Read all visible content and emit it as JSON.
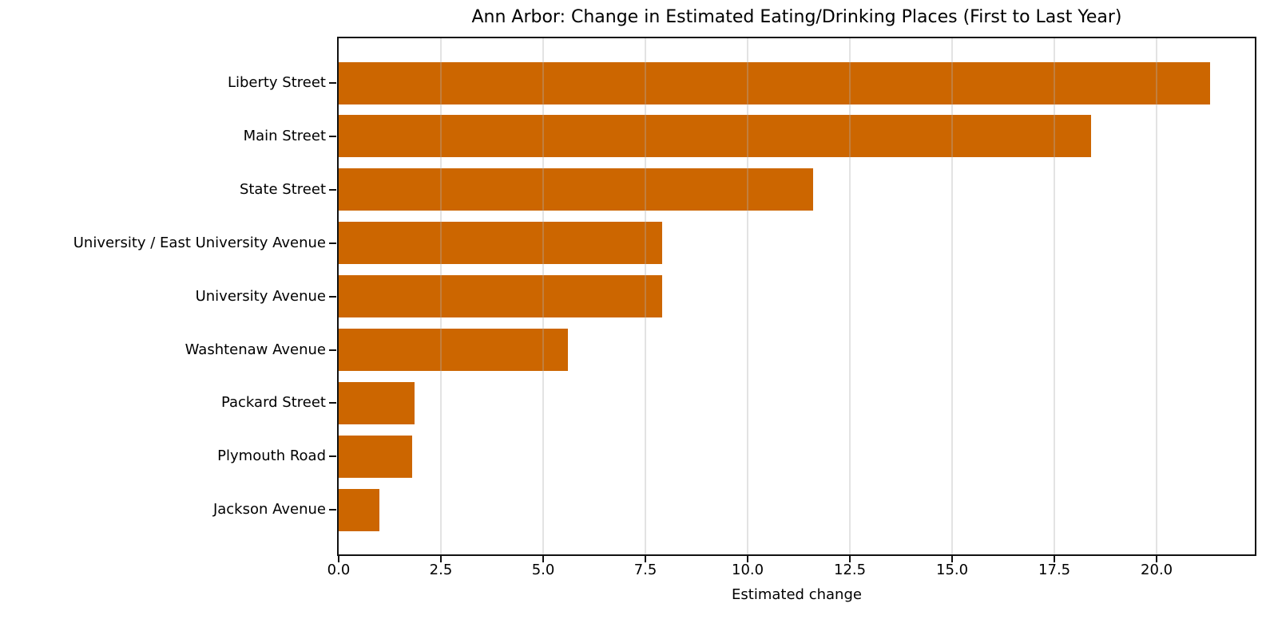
{
  "chart_data": {
    "type": "bar",
    "orientation": "horizontal",
    "title": "Ann Arbor: Change in Estimated Eating/Drinking Places (First to Last Year)",
    "categories": [
      "Liberty Street",
      "Main Street",
      "State Street",
      "University / East University Avenue",
      "University Avenue",
      "Washtenaw Avenue",
      "Packard Street",
      "Plymouth Road",
      "Jackson Avenue"
    ],
    "values": [
      21.3,
      18.4,
      11.6,
      7.9,
      7.9,
      5.6,
      1.85,
      1.8,
      1.0
    ],
    "xlabel": "Estimated change",
    "x_tick_labels": [
      "0.0",
      "2.5",
      "5.0",
      "7.5",
      "10.0",
      "12.5",
      "15.0",
      "17.5",
      "20.0"
    ],
    "xlim": [
      0,
      22.4
    ],
    "bar_color": "#cc6600",
    "grid": true,
    "grid_axis": "x",
    "legend_position": "none"
  }
}
